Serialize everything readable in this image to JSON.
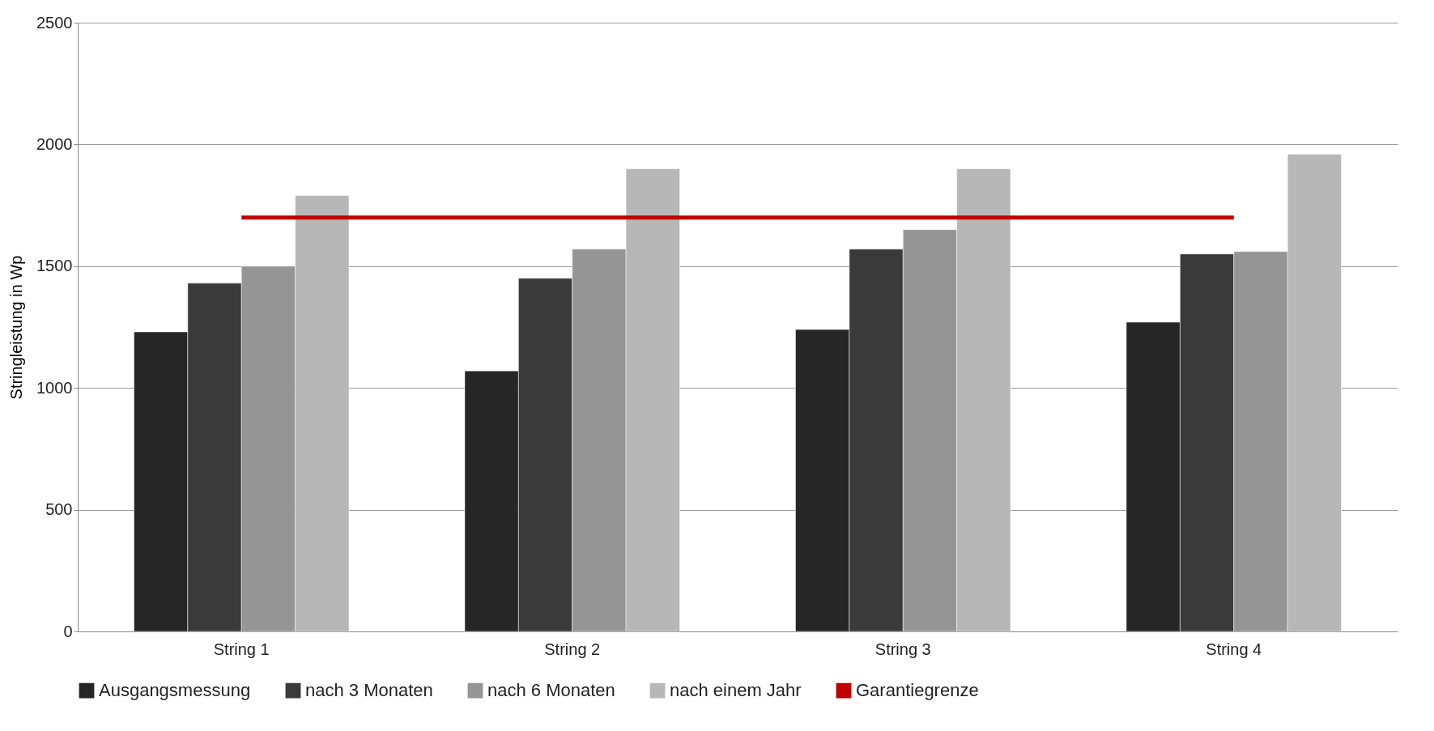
{
  "chart_data": {
    "type": "bar",
    "ylabel": "Stringleistung in Wp",
    "categories": [
      "String 1",
      "String 2",
      "String 3",
      "String 4"
    ],
    "series": [
      {
        "name": "Ausgangsmessung",
        "color": "#262626",
        "values": [
          1230,
          1070,
          1240,
          1270
        ]
      },
      {
        "name": "nach 3 Monaten",
        "color": "#3a3a3a",
        "values": [
          1430,
          1450,
          1570,
          1550
        ]
      },
      {
        "name": "nach 6 Monaten",
        "color": "#959595",
        "values": [
          1500,
          1570,
          1650,
          1560
        ]
      },
      {
        "name": "nach einem Jahr",
        "color": "#b7b7b7",
        "values": [
          1790,
          1900,
          1900,
          1960
        ]
      },
      {
        "name": "Garantiegrenze",
        "color": "#c00000",
        "type": "line",
        "values": [
          1700,
          1700,
          1700,
          1700
        ]
      }
    ],
    "ylim": [
      0,
      2500
    ],
    "yticks": [
      0,
      500,
      1000,
      1500,
      2000,
      2500
    ],
    "grid": "y",
    "legend": "bottom"
  }
}
